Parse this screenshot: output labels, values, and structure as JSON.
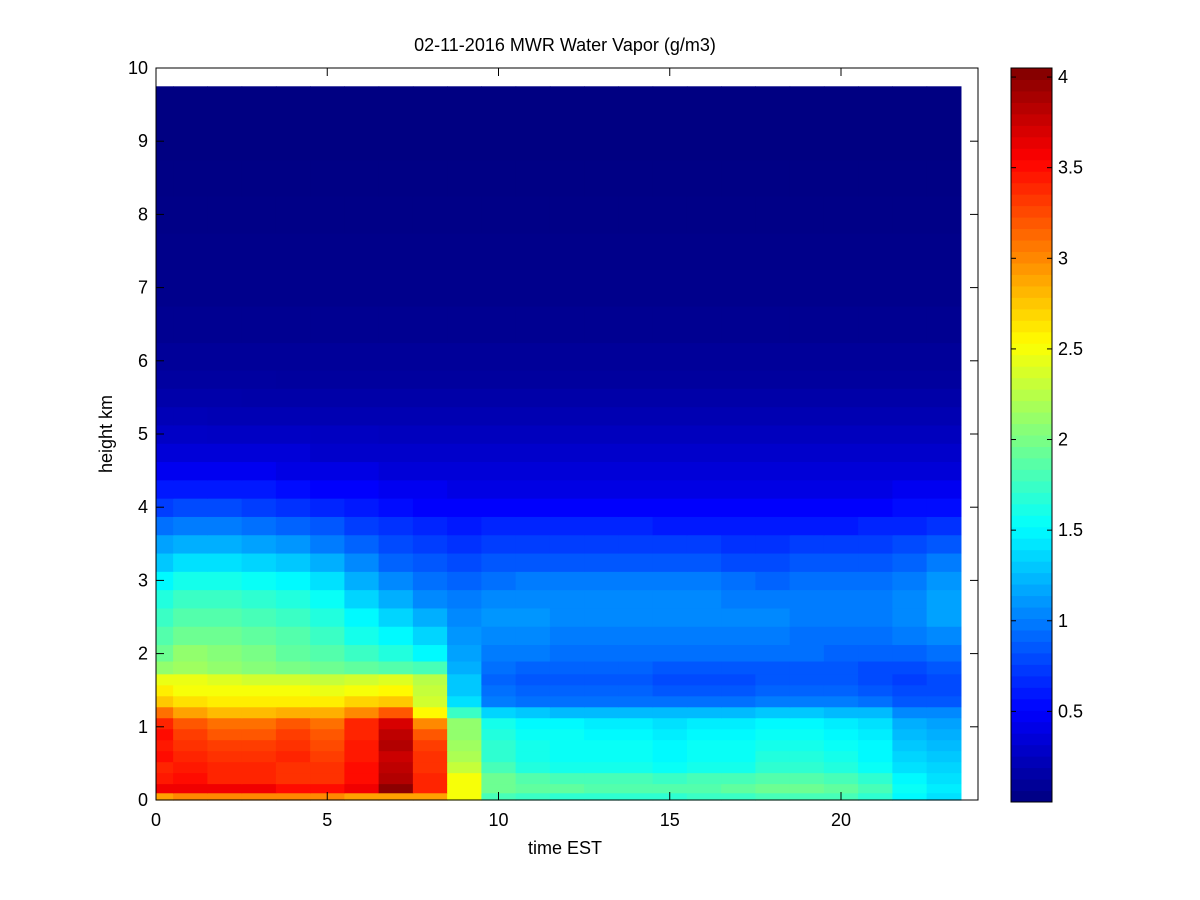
{
  "chart_data": {
    "type": "heatmap",
    "title": "02-11-2016 MWR Water Vapor (g/m3)",
    "xlabel": "time EST",
    "ylabel": "height km",
    "xlim": [
      0,
      24
    ],
    "ylim": [
      0,
      10
    ],
    "xticks": [
      "0",
      "5",
      "10",
      "15",
      "20"
    ],
    "yticks": [
      "0",
      "1",
      "2",
      "3",
      "4",
      "5",
      "6",
      "7",
      "8",
      "9",
      "10"
    ],
    "colorbar": {
      "colormap": "jet",
      "clim": [
        0,
        4.05
      ],
      "ticks": [
        "0.5",
        "1",
        "1.5",
        "2",
        "2.5",
        "3",
        "3.5",
        "4"
      ]
    },
    "times": [
      0,
      1,
      2,
      3,
      4,
      5,
      6,
      7,
      8,
      9,
      10,
      11,
      12,
      13,
      14,
      15,
      16,
      17,
      18,
      19,
      20,
      21,
      22,
      23
    ],
    "heights": [
      0.05,
      0.15,
      0.3,
      0.45,
      0.6,
      0.75,
      0.9,
      1.05,
      1.2,
      1.35,
      1.5,
      1.65,
      1.8,
      2.0,
      2.25,
      2.5,
      2.75,
      3.0,
      3.25,
      3.5,
      3.75,
      4.0,
      4.25,
      4.5,
      4.75,
      5.0,
      5.25,
      5.5,
      5.75,
      6.0,
      6.5,
      7.0,
      7.5,
      8.0,
      8.5,
      9.0,
      9.5
    ],
    "heights_note_removed": true,
    "values": [
      [
        2.9,
        3.0,
        3.0,
        3.0,
        3.0,
        3.0,
        2.9,
        2.9,
        2.9,
        2.5,
        1.8,
        1.75,
        1.7,
        1.7,
        1.7,
        1.7,
        1.75,
        1.75,
        1.8,
        1.8,
        1.8,
        1.7,
        1.5,
        1.4
      ],
      [
        3.6,
        3.6,
        3.6,
        3.6,
        3.5,
        3.5,
        3.6,
        4.0,
        3.4,
        2.5,
        1.95,
        1.9,
        1.9,
        1.85,
        1.85,
        1.85,
        1.85,
        1.9,
        1.95,
        1.95,
        1.9,
        1.8,
        1.55,
        1.45
      ],
      [
        3.45,
        3.5,
        3.4,
        3.4,
        3.35,
        3.35,
        3.5,
        3.85,
        3.4,
        2.5,
        1.95,
        1.85,
        1.8,
        1.8,
        1.8,
        1.75,
        1.8,
        1.8,
        1.85,
        1.85,
        1.8,
        1.7,
        1.5,
        1.4
      ],
      [
        3.4,
        3.45,
        3.4,
        3.4,
        3.35,
        3.35,
        3.5,
        3.8,
        3.35,
        2.3,
        1.8,
        1.65,
        1.6,
        1.6,
        1.6,
        1.55,
        1.6,
        1.6,
        1.7,
        1.7,
        1.65,
        1.55,
        1.4,
        1.35
      ],
      [
        3.5,
        3.4,
        3.35,
        3.35,
        3.4,
        3.3,
        3.45,
        3.75,
        3.35,
        2.2,
        1.7,
        1.6,
        1.55,
        1.55,
        1.55,
        1.5,
        1.55,
        1.55,
        1.65,
        1.65,
        1.6,
        1.5,
        1.35,
        1.3
      ],
      [
        3.45,
        3.35,
        3.3,
        3.3,
        3.35,
        3.25,
        3.45,
        3.85,
        3.3,
        2.15,
        1.7,
        1.6,
        1.55,
        1.55,
        1.55,
        1.5,
        1.55,
        1.55,
        1.6,
        1.6,
        1.55,
        1.5,
        1.3,
        1.25
      ],
      [
        3.5,
        3.3,
        3.2,
        3.2,
        3.3,
        3.2,
        3.4,
        3.8,
        3.2,
        2.1,
        1.65,
        1.55,
        1.55,
        1.5,
        1.5,
        1.45,
        1.5,
        1.5,
        1.55,
        1.55,
        1.5,
        1.45,
        1.25,
        1.2
      ],
      [
        3.4,
        3.2,
        3.1,
        3.1,
        3.2,
        3.1,
        3.4,
        3.7,
        3.0,
        2.1,
        1.6,
        1.5,
        1.5,
        1.45,
        1.45,
        1.4,
        1.45,
        1.45,
        1.5,
        1.5,
        1.45,
        1.4,
        1.2,
        1.15
      ],
      [
        3.1,
        2.9,
        2.8,
        2.8,
        2.85,
        2.85,
        3.0,
        3.2,
        2.55,
        1.75,
        1.35,
        1.3,
        1.25,
        1.25,
        1.25,
        1.25,
        1.25,
        1.25,
        1.3,
        1.3,
        1.25,
        1.25,
        1.05,
        1.05
      ],
      [
        2.75,
        2.65,
        2.6,
        2.6,
        2.6,
        2.6,
        2.7,
        2.75,
        2.35,
        1.4,
        1.0,
        0.95,
        0.95,
        0.95,
        0.95,
        0.95,
        0.95,
        0.95,
        1.0,
        1.0,
        1.0,
        0.95,
        0.85,
        0.85
      ],
      [
        2.6,
        2.5,
        2.5,
        2.5,
        2.5,
        2.45,
        2.5,
        2.55,
        2.3,
        1.3,
        0.95,
        0.9,
        0.9,
        0.9,
        0.9,
        0.85,
        0.85,
        0.85,
        0.9,
        0.9,
        0.9,
        0.85,
        0.8,
        0.8
      ],
      [
        2.45,
        2.45,
        2.4,
        2.35,
        2.35,
        2.3,
        2.35,
        2.4,
        2.25,
        1.3,
        0.9,
        0.85,
        0.85,
        0.85,
        0.85,
        0.8,
        0.8,
        0.8,
        0.85,
        0.85,
        0.85,
        0.8,
        0.75,
        0.8
      ],
      [
        2.1,
        2.15,
        2.1,
        2.05,
        2.0,
        1.95,
        1.9,
        1.85,
        1.8,
        1.2,
        0.95,
        0.9,
        0.9,
        0.9,
        0.9,
        0.85,
        0.85,
        0.85,
        0.85,
        0.85,
        0.85,
        0.8,
        0.8,
        0.85
      ],
      [
        1.95,
        2.1,
        2.05,
        2.0,
        1.9,
        1.85,
        1.75,
        1.65,
        1.5,
        1.15,
        1.0,
        1.0,
        0.95,
        0.95,
        0.95,
        0.95,
        0.95,
        0.95,
        0.95,
        0.95,
        0.9,
        0.9,
        0.9,
        0.95
      ],
      [
        1.85,
        1.95,
        1.95,
        1.9,
        1.85,
        1.75,
        1.6,
        1.5,
        1.35,
        1.1,
        1.05,
        1.05,
        1.0,
        1.0,
        1.0,
        1.0,
        1.0,
        1.0,
        1.0,
        0.95,
        0.95,
        0.95,
        1.0,
        1.05
      ],
      [
        1.75,
        1.85,
        1.85,
        1.8,
        1.75,
        1.65,
        1.5,
        1.35,
        1.2,
        1.05,
        1.1,
        1.1,
        1.05,
        1.05,
        1.05,
        1.05,
        1.05,
        1.05,
        1.05,
        1.0,
        1.0,
        1.0,
        1.05,
        1.15
      ],
      [
        1.65,
        1.75,
        1.75,
        1.7,
        1.65,
        1.55,
        1.35,
        1.2,
        1.05,
        1.0,
        1.05,
        1.05,
        1.05,
        1.05,
        1.05,
        1.05,
        1.05,
        1.0,
        1.0,
        1.0,
        1.0,
        1.0,
        1.05,
        1.15
      ],
      [
        1.5,
        1.6,
        1.6,
        1.55,
        1.5,
        1.4,
        1.2,
        1.05,
        0.95,
        0.9,
        0.95,
        1.0,
        1.0,
        1.0,
        1.0,
        1.0,
        1.0,
        0.95,
        0.9,
        0.95,
        0.95,
        0.95,
        1.0,
        1.1
      ],
      [
        1.3,
        1.4,
        1.4,
        1.35,
        1.3,
        1.2,
        1.05,
        0.9,
        0.85,
        0.8,
        0.85,
        0.85,
        0.85,
        0.85,
        0.85,
        0.85,
        0.85,
        0.8,
        0.8,
        0.85,
        0.85,
        0.85,
        0.9,
        1.0
      ],
      [
        1.15,
        1.2,
        1.2,
        1.15,
        1.1,
        1.0,
        0.9,
        0.8,
        0.75,
        0.7,
        0.75,
        0.75,
        0.75,
        0.75,
        0.75,
        0.75,
        0.75,
        0.7,
        0.7,
        0.75,
        0.75,
        0.75,
        0.8,
        0.85
      ],
      [
        0.95,
        1.0,
        1.0,
        0.95,
        0.9,
        0.85,
        0.75,
        0.7,
        0.65,
        0.6,
        0.65,
        0.65,
        0.65,
        0.65,
        0.65,
        0.6,
        0.6,
        0.6,
        0.6,
        0.6,
        0.6,
        0.65,
        0.65,
        0.7
      ],
      [
        0.75,
        0.8,
        0.8,
        0.75,
        0.7,
        0.65,
        0.6,
        0.55,
        0.5,
        0.5,
        0.5,
        0.5,
        0.5,
        0.5,
        0.5,
        0.5,
        0.5,
        0.5,
        0.5,
        0.5,
        0.5,
        0.5,
        0.55,
        0.55
      ],
      [
        0.6,
        0.6,
        0.6,
        0.6,
        0.55,
        0.5,
        0.5,
        0.45,
        0.45,
        0.4,
        0.4,
        0.4,
        0.4,
        0.4,
        0.4,
        0.4,
        0.4,
        0.4,
        0.4,
        0.4,
        0.4,
        0.4,
        0.45,
        0.45
      ],
      [
        0.45,
        0.45,
        0.45,
        0.45,
        0.4,
        0.4,
        0.4,
        0.35,
        0.35,
        0.35,
        0.35,
        0.35,
        0.35,
        0.35,
        0.35,
        0.35,
        0.35,
        0.35,
        0.35,
        0.35,
        0.35,
        0.35,
        0.35,
        0.35
      ],
      [
        0.35,
        0.35,
        0.35,
        0.35,
        0.35,
        0.3,
        0.3,
        0.3,
        0.3,
        0.3,
        0.3,
        0.3,
        0.3,
        0.3,
        0.3,
        0.3,
        0.3,
        0.3,
        0.3,
        0.3,
        0.3,
        0.3,
        0.3,
        0.3
      ],
      [
        0.28,
        0.28,
        0.27,
        0.27,
        0.27,
        0.26,
        0.26,
        0.25,
        0.25,
        0.25,
        0.25,
        0.25,
        0.25,
        0.25,
        0.25,
        0.25,
        0.25,
        0.25,
        0.25,
        0.25,
        0.25,
        0.25,
        0.25,
        0.25
      ],
      [
        0.22,
        0.22,
        0.21,
        0.21,
        0.21,
        0.2,
        0.2,
        0.2,
        0.2,
        0.2,
        0.2,
        0.2,
        0.2,
        0.2,
        0.2,
        0.2,
        0.2,
        0.2,
        0.2,
        0.2,
        0.2,
        0.2,
        0.2,
        0.2
      ],
      [
        0.17,
        0.17,
        0.17,
        0.16,
        0.16,
        0.16,
        0.16,
        0.16,
        0.16,
        0.16,
        0.16,
        0.16,
        0.16,
        0.16,
        0.16,
        0.16,
        0.16,
        0.16,
        0.16,
        0.16,
        0.16,
        0.16,
        0.16,
        0.16
      ],
      [
        0.13,
        0.13,
        0.13,
        0.13,
        0.12,
        0.12,
        0.12,
        0.12,
        0.12,
        0.12,
        0.12,
        0.12,
        0.12,
        0.12,
        0.12,
        0.12,
        0.12,
        0.12,
        0.12,
        0.12,
        0.12,
        0.12,
        0.12,
        0.12
      ],
      [
        0.1,
        0.1,
        0.1,
        0.1,
        0.1,
        0.1,
        0.1,
        0.1,
        0.1,
        0.1,
        0.1,
        0.1,
        0.1,
        0.1,
        0.1,
        0.1,
        0.1,
        0.1,
        0.1,
        0.1,
        0.1,
        0.1,
        0.1,
        0.1
      ],
      [
        0.07,
        0.07,
        0.07,
        0.07,
        0.07,
        0.07,
        0.07,
        0.07,
        0.07,
        0.07,
        0.07,
        0.07,
        0.07,
        0.07,
        0.07,
        0.07,
        0.07,
        0.07,
        0.07,
        0.07,
        0.07,
        0.07,
        0.07,
        0.07
      ],
      [
        0.05,
        0.05,
        0.05,
        0.05,
        0.05,
        0.05,
        0.05,
        0.05,
        0.05,
        0.05,
        0.05,
        0.05,
        0.05,
        0.05,
        0.05,
        0.05,
        0.05,
        0.05,
        0.05,
        0.05,
        0.05,
        0.05,
        0.05,
        0.05
      ],
      [
        0.04,
        0.04,
        0.04,
        0.04,
        0.04,
        0.04,
        0.04,
        0.04,
        0.04,
        0.04,
        0.04,
        0.04,
        0.04,
        0.04,
        0.04,
        0.04,
        0.04,
        0.04,
        0.04,
        0.04,
        0.04,
        0.04,
        0.04,
        0.04
      ],
      [
        0.03,
        0.03,
        0.03,
        0.03,
        0.03,
        0.03,
        0.03,
        0.03,
        0.03,
        0.03,
        0.03,
        0.03,
        0.03,
        0.03,
        0.03,
        0.03,
        0.03,
        0.03,
        0.03,
        0.03,
        0.03,
        0.03,
        0.03,
        0.03
      ],
      [
        0.02,
        0.02,
        0.02,
        0.02,
        0.02,
        0.02,
        0.02,
        0.02,
        0.02,
        0.02,
        0.02,
        0.02,
        0.02,
        0.02,
        0.02,
        0.02,
        0.02,
        0.02,
        0.02,
        0.02,
        0.02,
        0.02,
        0.02,
        0.02
      ],
      [
        0.01,
        0.01,
        0.01,
        0.01,
        0.01,
        0.01,
        0.01,
        0.01,
        0.01,
        0.01,
        0.01,
        0.01,
        0.01,
        0.01,
        0.01,
        0.01,
        0.01,
        0.01,
        0.01,
        0.01,
        0.01,
        0.01,
        0.01,
        0.01
      ],
      [
        0.01,
        0.01,
        0.01,
        0.01,
        0.01,
        0.01,
        0.01,
        0.01,
        0.01,
        0.01,
        0.01,
        0.01,
        0.01,
        0.01,
        0.01,
        0.01,
        0.01,
        0.01,
        0.01,
        0.01,
        0.01,
        0.01,
        0.01,
        0.01
      ]
    ]
  }
}
